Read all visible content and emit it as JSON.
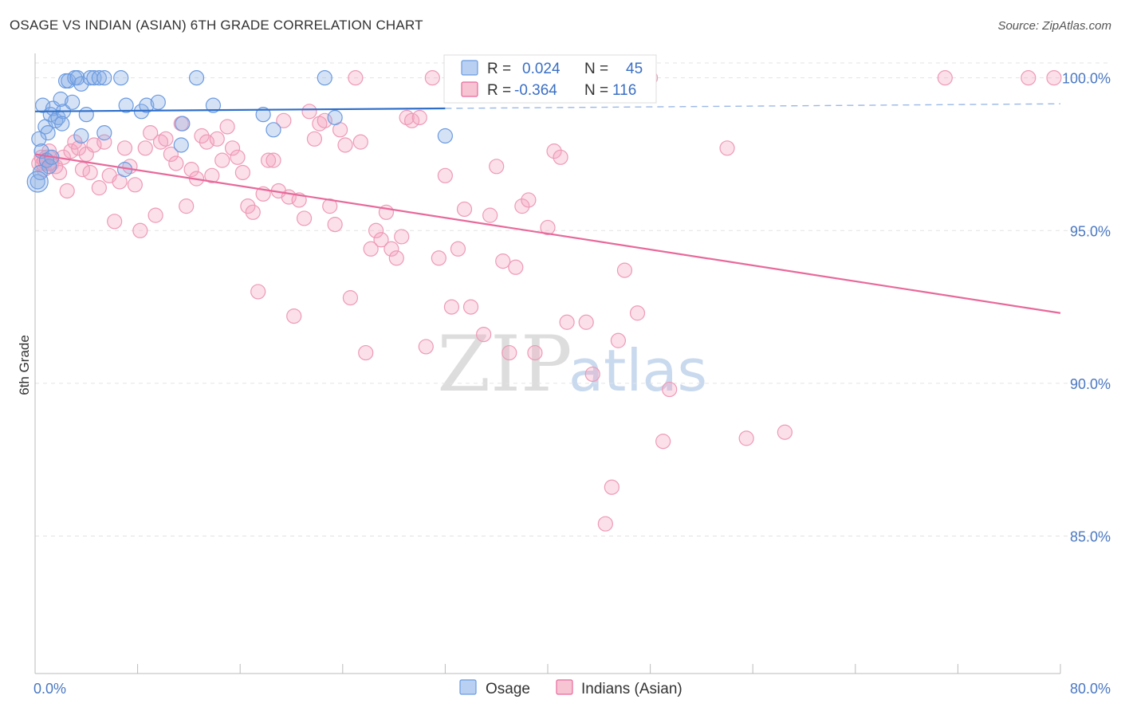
{
  "title": "OSAGE VS INDIAN (ASIAN) 6TH GRADE CORRELATION CHART",
  "source": "Source: ZipAtlas.com",
  "watermark": {
    "zip": "ZIP",
    "atlas": "atlas"
  },
  "legend": {
    "r_label": "R =",
    "n_label": "N =",
    "rows": [
      {
        "name": "Osage",
        "r": "0.024",
        "n": "45"
      },
      {
        "name": "Indians (Asian)",
        "r": "-0.364",
        "n": "116"
      }
    ]
  },
  "chart_data": {
    "type": "scatter",
    "title": "OSAGE VS INDIAN (ASIAN) 6TH GRADE CORRELATION CHART",
    "xlabel": "",
    "ylabel": "6th Grade",
    "xlim": [
      0,
      80
    ],
    "ylim": [
      80.5,
      100.8
    ],
    "x_tick_labels": [
      "0.0%",
      "80.0%"
    ],
    "y_ticks": [
      85,
      90,
      95,
      100
    ],
    "y_tick_labels": [
      "85.0%",
      "90.0%",
      "95.0%",
      "100.0%"
    ],
    "colors": {
      "osage": "#6b9be0",
      "indians": "#f0a0bc",
      "osage_line": "#2f6fc9",
      "indians_line": "#e8699a"
    },
    "series": [
      {
        "name": "Osage",
        "r": 0.024,
        "n": 45,
        "trend": {
          "x": [
            0,
            32
          ],
          "y": [
            98.9,
            99.0
          ],
          "dashed_to": [
            80,
            99.15
          ]
        },
        "points": [
          [
            0.6,
            99.1
          ],
          [
            0.8,
            98.4
          ],
          [
            1.0,
            98.2
          ],
          [
            1.2,
            98.8
          ],
          [
            1.4,
            99.0
          ],
          [
            1.6,
            98.6
          ],
          [
            1.8,
            98.7
          ],
          [
            2.0,
            99.3
          ],
          [
            2.2,
            98.9
          ],
          [
            2.4,
            99.9
          ],
          [
            2.6,
            99.9
          ],
          [
            2.9,
            99.2
          ],
          [
            3.1,
            100.0
          ],
          [
            3.3,
            100.0
          ],
          [
            3.6,
            99.8
          ],
          [
            4.0,
            98.8
          ],
          [
            4.3,
            100.0
          ],
          [
            4.6,
            100.0
          ],
          [
            5.0,
            100.0
          ],
          [
            5.4,
            100.0
          ],
          [
            6.7,
            100.0
          ],
          [
            7.1,
            99.1
          ],
          [
            8.3,
            98.9
          ],
          [
            8.7,
            99.1
          ],
          [
            9.6,
            99.2
          ],
          [
            11.5,
            98.5
          ],
          [
            12.6,
            100.0
          ],
          [
            13.9,
            99.1
          ],
          [
            17.8,
            98.8
          ],
          [
            18.6,
            98.3
          ],
          [
            22.6,
            100.0
          ],
          [
            23.4,
            98.7
          ],
          [
            32.0,
            98.1
          ],
          [
            0.3,
            98.0
          ],
          [
            0.5,
            97.6
          ],
          [
            0.9,
            97.3
          ],
          [
            1.1,
            97.1
          ],
          [
            1.3,
            97.4
          ],
          [
            3.6,
            98.1
          ],
          [
            5.4,
            98.2
          ],
          [
            7.0,
            97.0
          ],
          [
            11.4,
            97.8
          ],
          [
            0.2,
            96.6
          ],
          [
            0.4,
            96.9
          ],
          [
            2.1,
            98.5
          ]
        ]
      },
      {
        "name": "Indians (Asian)",
        "r": -0.364,
        "n": 116,
        "trend": {
          "x": [
            0,
            80
          ],
          "y": [
            97.5,
            92.3
          ]
        },
        "points": [
          [
            0.3,
            97.2
          ],
          [
            0.5,
            97.4
          ],
          [
            0.7,
            97.0
          ],
          [
            0.9,
            97.3
          ],
          [
            1.1,
            97.6
          ],
          [
            1.3,
            97.2
          ],
          [
            1.6,
            97.1
          ],
          [
            1.9,
            96.9
          ],
          [
            2.2,
            97.4
          ],
          [
            2.5,
            96.3
          ],
          [
            2.8,
            97.6
          ],
          [
            3.1,
            97.9
          ],
          [
            3.4,
            97.7
          ],
          [
            3.7,
            97.0
          ],
          [
            4.0,
            97.5
          ],
          [
            4.3,
            96.9
          ],
          [
            4.6,
            97.8
          ],
          [
            5.0,
            96.4
          ],
          [
            5.4,
            97.9
          ],
          [
            5.8,
            96.8
          ],
          [
            6.2,
            95.3
          ],
          [
            6.6,
            96.6
          ],
          [
            7.0,
            97.7
          ],
          [
            7.4,
            97.1
          ],
          [
            7.8,
            96.5
          ],
          [
            8.2,
            95.0
          ],
          [
            8.6,
            97.7
          ],
          [
            9.0,
            98.2
          ],
          [
            9.4,
            95.5
          ],
          [
            9.8,
            97.9
          ],
          [
            10.2,
            98.0
          ],
          [
            10.6,
            97.5
          ],
          [
            11.0,
            97.2
          ],
          [
            11.4,
            98.5
          ],
          [
            11.8,
            95.8
          ],
          [
            12.2,
            97.0
          ],
          [
            12.6,
            96.7
          ],
          [
            13.0,
            98.1
          ],
          [
            13.4,
            97.9
          ],
          [
            13.8,
            96.8
          ],
          [
            14.2,
            98.0
          ],
          [
            14.6,
            97.3
          ],
          [
            15.0,
            98.4
          ],
          [
            15.4,
            97.7
          ],
          [
            15.8,
            97.4
          ],
          [
            16.2,
            96.9
          ],
          [
            16.6,
            95.8
          ],
          [
            17.0,
            95.6
          ],
          [
            17.4,
            93.0
          ],
          [
            17.8,
            96.2
          ],
          [
            18.2,
            97.3
          ],
          [
            18.6,
            97.3
          ],
          [
            19.0,
            96.3
          ],
          [
            19.4,
            98.6
          ],
          [
            19.8,
            96.1
          ],
          [
            20.2,
            92.2
          ],
          [
            20.6,
            96.0
          ],
          [
            21.0,
            95.4
          ],
          [
            21.4,
            98.9
          ],
          [
            21.8,
            98.0
          ],
          [
            22.2,
            98.5
          ],
          [
            22.6,
            98.6
          ],
          [
            23.0,
            95.8
          ],
          [
            23.4,
            95.2
          ],
          [
            23.8,
            98.3
          ],
          [
            24.2,
            97.8
          ],
          [
            24.6,
            92.8
          ],
          [
            25.0,
            100.0
          ],
          [
            25.4,
            97.9
          ],
          [
            25.8,
            91.0
          ],
          [
            26.2,
            94.4
          ],
          [
            26.6,
            95.0
          ],
          [
            27.0,
            94.7
          ],
          [
            27.4,
            95.6
          ],
          [
            27.8,
            94.4
          ],
          [
            28.2,
            94.1
          ],
          [
            28.6,
            94.8
          ],
          [
            29.0,
            98.7
          ],
          [
            29.4,
            98.6
          ],
          [
            30.0,
            98.7
          ],
          [
            30.5,
            91.2
          ],
          [
            31.0,
            100.0
          ],
          [
            31.5,
            94.1
          ],
          [
            32.0,
            96.8
          ],
          [
            32.5,
            92.5
          ],
          [
            33.0,
            94.4
          ],
          [
            33.5,
            95.7
          ],
          [
            34.0,
            92.5
          ],
          [
            35.0,
            91.6
          ],
          [
            35.5,
            95.5
          ],
          [
            36.0,
            97.1
          ],
          [
            36.5,
            94.0
          ],
          [
            37.0,
            91.0
          ],
          [
            37.5,
            93.8
          ],
          [
            38.0,
            95.8
          ],
          [
            38.5,
            96.0
          ],
          [
            39.0,
            91.0
          ],
          [
            40.0,
            95.1
          ],
          [
            40.5,
            97.6
          ],
          [
            41.0,
            97.4
          ],
          [
            41.5,
            92.0
          ],
          [
            43.0,
            92.0
          ],
          [
            43.5,
            90.3
          ],
          [
            44.5,
            85.4
          ],
          [
            45.0,
            86.6
          ],
          [
            45.5,
            91.4
          ],
          [
            46.0,
            93.7
          ],
          [
            47.0,
            92.3
          ],
          [
            48.0,
            100.0
          ],
          [
            49.0,
            88.1
          ],
          [
            49.5,
            89.8
          ],
          [
            54.0,
            97.7
          ],
          [
            55.5,
            88.2
          ],
          [
            58.5,
            88.4
          ],
          [
            71.0,
            100.0
          ],
          [
            77.5,
            100.0
          ],
          [
            79.5,
            100.0
          ],
          [
            0.6,
            97.2
          ]
        ]
      }
    ]
  }
}
